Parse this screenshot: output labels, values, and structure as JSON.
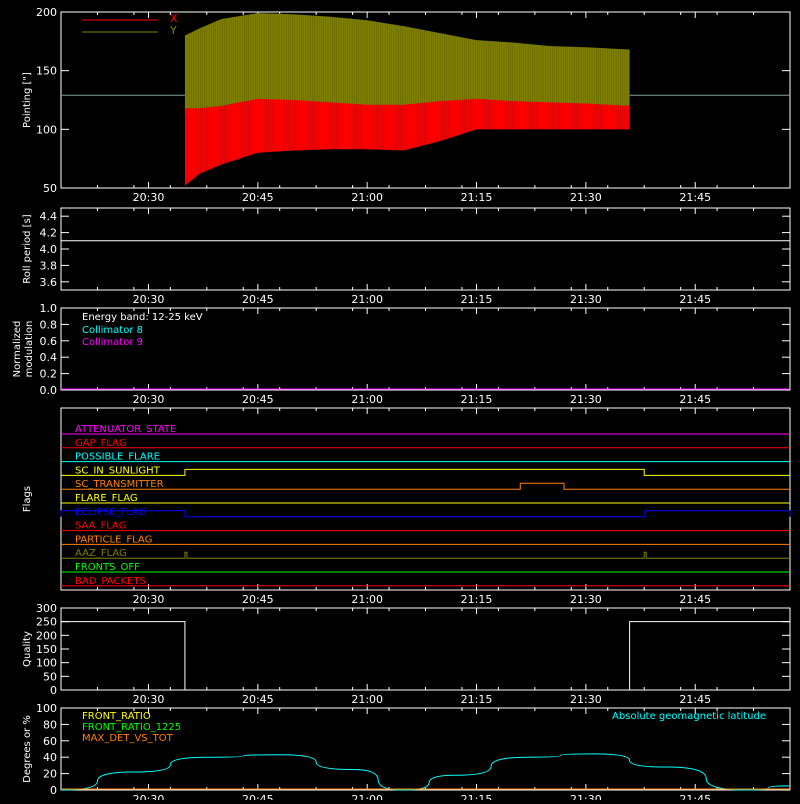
{
  "time_axis": {
    "start": "20:18",
    "end": "21:58",
    "ticks": [
      "20:30",
      "20:45",
      "21:00",
      "21:15",
      "21:30",
      "21:45"
    ]
  },
  "colors": {
    "background": "#000000",
    "axis": "#ffffff",
    "x_series": "#ff0000",
    "y_series": "#808000",
    "reference_line": "#7f9f9f",
    "energy_text": "#ffffff",
    "collimator_8": "#00ffff",
    "collimator_9": "#ff00ff",
    "front_ratio": "#ffff00",
    "front_ratio_1225": "#00ff00",
    "max_det_vs_tot": "#ff8000",
    "geomag": "#00ffff"
  },
  "chart_data": [
    {
      "type": "area",
      "id": "pointing",
      "ylabel": "Pointing [\"]",
      "ylim": [
        50,
        200
      ],
      "yticks": [
        50,
        100,
        150,
        200
      ],
      "legend": [
        {
          "name": "X",
          "color": "#ff0000"
        },
        {
          "name": "Y",
          "color": "#808000"
        }
      ],
      "reference_value": 129,
      "data_window": [
        "20:35",
        "21:36"
      ],
      "x": [
        "20:35",
        "20:37",
        "20:40",
        "20:45",
        "20:50",
        "20:55",
        "21:00",
        "21:05",
        "21:10",
        "21:15",
        "21:20",
        "21:25",
        "21:30",
        "21:36"
      ],
      "series": [
        {
          "name": "X",
          "lower": [
            52,
            62,
            70,
            80,
            82,
            83,
            83,
            82,
            90,
            100,
            100,
            100,
            100,
            100
          ],
          "upper": [
            118,
            118,
            120,
            126,
            125,
            123,
            121,
            121,
            124,
            126,
            124,
            123,
            122,
            120
          ]
        },
        {
          "name": "Y",
          "lower": [
            110,
            112,
            113,
            114,
            114,
            113,
            112,
            112,
            114,
            115,
            113,
            112,
            111,
            110
          ],
          "upper": [
            180,
            186,
            194,
            199,
            198,
            196,
            193,
            188,
            182,
            176,
            174,
            171,
            170,
            168
          ]
        }
      ]
    },
    {
      "type": "line",
      "id": "roll",
      "ylabel": "Roll period [s]",
      "ylim": [
        3.5,
        4.5
      ],
      "yticks": [
        "3.6",
        "3.8",
        "4.0",
        "4.2",
        "4.4"
      ],
      "x": [
        "20:18",
        "21:58"
      ],
      "values": [
        4.1,
        4.1
      ]
    },
    {
      "type": "line",
      "id": "modulation",
      "ylabel": "Normalized modulation",
      "ylim": [
        0,
        1
      ],
      "yticks": [
        "0.0",
        "0.2",
        "0.4",
        "0.6",
        "0.8",
        "1.0"
      ],
      "annotation": "Energy band: 12-25 keV",
      "series": [
        {
          "name": "Collimator 8",
          "color": "#00ffff",
          "values": [
            0,
            0
          ]
        },
        {
          "name": "Collimator 9",
          "color": "#ff00ff",
          "values": [
            0,
            0
          ]
        }
      ],
      "x": [
        "20:18",
        "21:58"
      ]
    },
    {
      "type": "line",
      "id": "flags",
      "ylabel": "Flags",
      "series": [
        {
          "name": "ATTENUATOR_STATE",
          "color": "#ff00ff",
          "steps": []
        },
        {
          "name": "GAP_FLAG",
          "color": "#ff0000",
          "steps": []
        },
        {
          "name": "POSSIBLE_FLARE",
          "color": "#00ffff",
          "steps": []
        },
        {
          "name": "SC_IN_SUNLIGHT",
          "color": "#ffff00",
          "steps": [
            [
              "20:35",
              "21:38"
            ]
          ]
        },
        {
          "name": "SC_TRANSMITTER",
          "color": "#ff8000",
          "steps": [
            [
              "21:21",
              "21:27"
            ]
          ]
        },
        {
          "name": "FLARE_FLAG",
          "color": "#ffff00",
          "steps": []
        },
        {
          "name": "ECLIPSE_FLAG",
          "color": "#0000ff",
          "steps": [
            [
              "20:18",
              "20:35"
            ],
            [
              "21:38",
              "21:58"
            ]
          ]
        },
        {
          "name": "SAA_FLAG",
          "color": "#ff0000",
          "steps": []
        },
        {
          "name": "PARTICLE_FLAG",
          "color": "#ff8000",
          "steps": []
        },
        {
          "name": "AAZ_FLAG",
          "color": "#808000",
          "spikes": [
            "20:35",
            "21:38"
          ]
        },
        {
          "name": "FRONTS_OFF",
          "color": "#00ff00",
          "steps": []
        },
        {
          "name": "BAD_PACKETS",
          "color": "#ff0000",
          "steps": []
        }
      ]
    },
    {
      "type": "line",
      "id": "quality",
      "ylabel": "Quality",
      "ylim": [
        0,
        300
      ],
      "yticks": [
        0,
        50,
        100,
        150,
        200,
        250,
        300
      ],
      "steps": [
        [
          "20:18",
          "20:35",
          250
        ],
        [
          "21:36",
          "21:58",
          250
        ]
      ]
    },
    {
      "type": "line",
      "id": "geomag",
      "ylabel": "Degrees or %",
      "ylim": [
        0,
        100
      ],
      "yticks": [
        0,
        20,
        40,
        60,
        80,
        100
      ],
      "legend": [
        {
          "name": "FRONT_RATIO",
          "color": "#ffff00"
        },
        {
          "name": "FRONT_RATIO_1225",
          "color": "#00ff00"
        },
        {
          "name": "MAX_DET_VS_TOT",
          "color": "#ff8000"
        }
      ],
      "annotation": "Absolute geomagnetic latitude",
      "x": [
        "20:18",
        "20:28",
        "20:38",
        "20:48",
        "20:58",
        "21:05",
        "21:12",
        "21:22",
        "21:31",
        "21:41",
        "21:52",
        "21:58"
      ],
      "values": [
        0,
        22,
        40,
        43,
        25,
        0,
        18,
        40,
        44,
        28,
        0,
        5
      ],
      "zero_line": 0
    }
  ]
}
